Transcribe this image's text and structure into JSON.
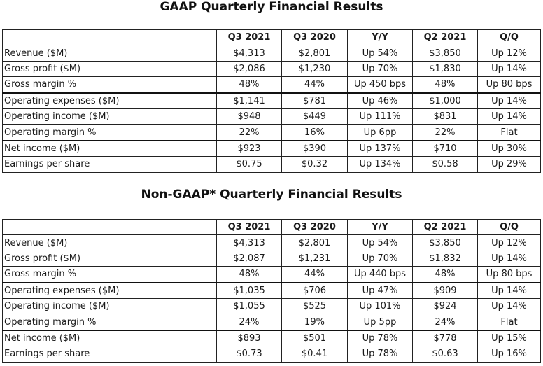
{
  "gaap": {
    "title": "GAAP Quarterly Financial Results",
    "headers": [
      "",
      "Q3 2021",
      "Q3 2020",
      "Y/Y",
      "Q2 2021",
      "Q/Q"
    ],
    "rows": [
      {
        "label": "Revenue ($M)",
        "cells": [
          "$4,313",
          "$2,801",
          "Up 54%",
          "$3,850",
          "Up 12%"
        ]
      },
      {
        "label": "Gross profit ($M)",
        "cells": [
          "$2,086",
          "$1,230",
          "Up 70%",
          "$1,830",
          "Up 14%"
        ]
      },
      {
        "label": "Gross margin %",
        "cells": [
          "48%",
          "44%",
          "Up 450 bps",
          "48%",
          "Up 80 bps"
        ]
      },
      {
        "label": "Operating expenses ($M)",
        "cells": [
          "$1,141",
          "$781",
          "Up 46%",
          "$1,000",
          "Up 14%"
        ]
      },
      {
        "label": "Operating income ($M)",
        "cells": [
          "$948",
          "$449",
          "Up 111%",
          "$831",
          "Up 14%"
        ]
      },
      {
        "label": "Operating margin %",
        "cells": [
          "22%",
          "16%",
          "Up 6pp",
          "22%",
          "Flat"
        ]
      },
      {
        "label": "Net income ($M)",
        "cells": [
          "$923",
          "$390",
          "Up 137%",
          "$710",
          "Up 30%"
        ]
      },
      {
        "label": "Earnings per share",
        "cells": [
          "$0.75",
          "$0.32",
          "Up 134%",
          "$0.58",
          "Up 29%"
        ]
      }
    ]
  },
  "nongaap": {
    "title": "Non-GAAP* Quarterly Financial Results",
    "headers": [
      "",
      "Q3 2021",
      "Q3 2020",
      "Y/Y",
      "Q2 2021",
      "Q/Q"
    ],
    "rows": [
      {
        "label": "Revenue ($M)",
        "cells": [
          "$4,313",
          "$2,801",
          "Up 54%",
          "$3,850",
          "Up 12%"
        ]
      },
      {
        "label": "Gross profit ($M)",
        "cells": [
          "$2,087",
          "$1,231",
          "Up 70%",
          "$1,832",
          "Up 14%"
        ]
      },
      {
        "label": "Gross margin %",
        "cells": [
          "48%",
          "44%",
          "Up 440 bps",
          "48%",
          "Up 80 bps"
        ]
      },
      {
        "label": "Operating expenses ($M)",
        "cells": [
          "$1,035",
          "$706",
          "Up 47%",
          "$909",
          "Up 14%"
        ]
      },
      {
        "label": "Operating income ($M)",
        "cells": [
          "$1,055",
          "$525",
          "Up 101%",
          "$924",
          "Up 14%"
        ]
      },
      {
        "label": "Operating margin %",
        "cells": [
          "24%",
          "19%",
          "Up 5pp",
          "24%",
          "Flat"
        ]
      },
      {
        "label": "Net income ($M)",
        "cells": [
          "$893",
          "$501",
          "Up 78%",
          "$778",
          "Up 15%"
        ]
      },
      {
        "label": "Earnings per share",
        "cells": [
          "$0.73",
          "$0.41",
          "Up 78%",
          "$0.63",
          "Up 16%"
        ]
      }
    ]
  }
}
